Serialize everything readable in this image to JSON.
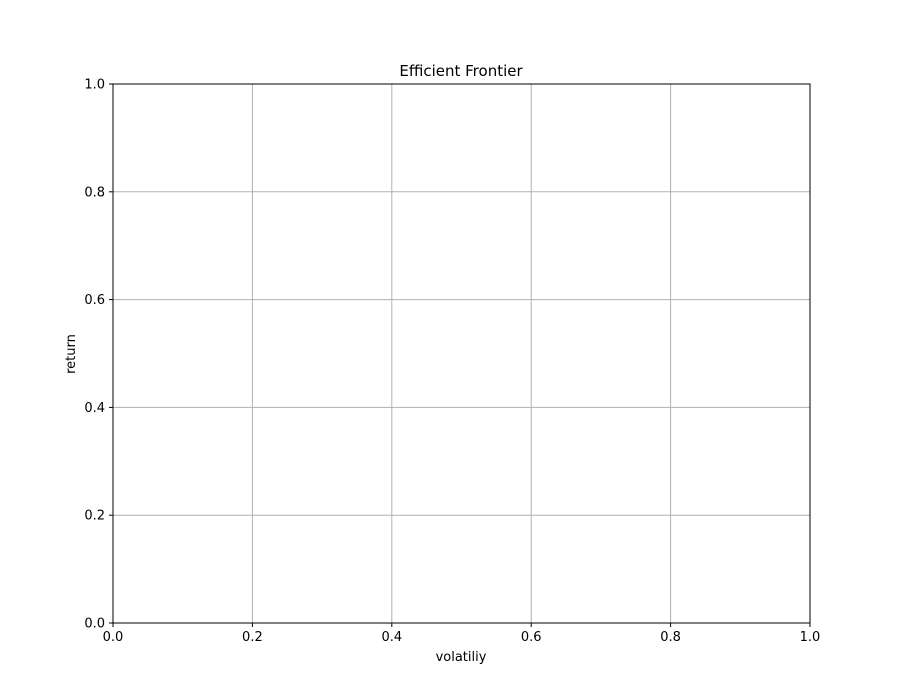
{
  "chart_data": {
    "type": "scatter",
    "title": "Efficient Frontier",
    "xlabel": "volatiliy",
    "ylabel": "return",
    "xlim": [
      0.0,
      1.0
    ],
    "ylim": [
      0.0,
      1.0
    ],
    "grid": true,
    "x_ticks": [
      "0.0",
      "0.2",
      "0.4",
      "0.6",
      "0.8",
      "1.0"
    ],
    "y_ticks": [
      "0.0",
      "0.2",
      "0.4",
      "0.6",
      "0.8",
      "1.0"
    ],
    "series": []
  }
}
